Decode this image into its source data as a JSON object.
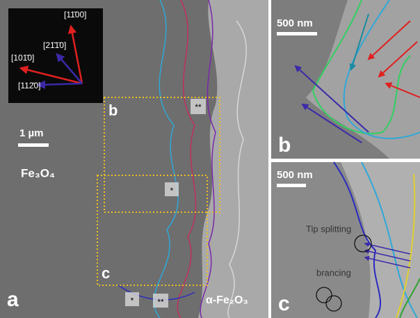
{
  "panel_a": {
    "label": "a",
    "inset_directions": [
      "[11̄00]",
      "[21̄1̄0]",
      "[101̄0]",
      "[112̄0]"
    ],
    "scale_bar": "1 µm",
    "phase_left": "Fe₃O₄",
    "phase_right": "α-Fe₂O₃",
    "box_labels": [
      "b",
      "c"
    ],
    "markers": [
      "**",
      "*",
      "*",
      "**"
    ]
  },
  "panel_b": {
    "label": "b",
    "scale_bar": "500 nm"
  },
  "panel_c": {
    "label": "c",
    "scale_bar": "500 nm",
    "annotations": [
      "Tip splitting",
      "brancing"
    ]
  }
}
